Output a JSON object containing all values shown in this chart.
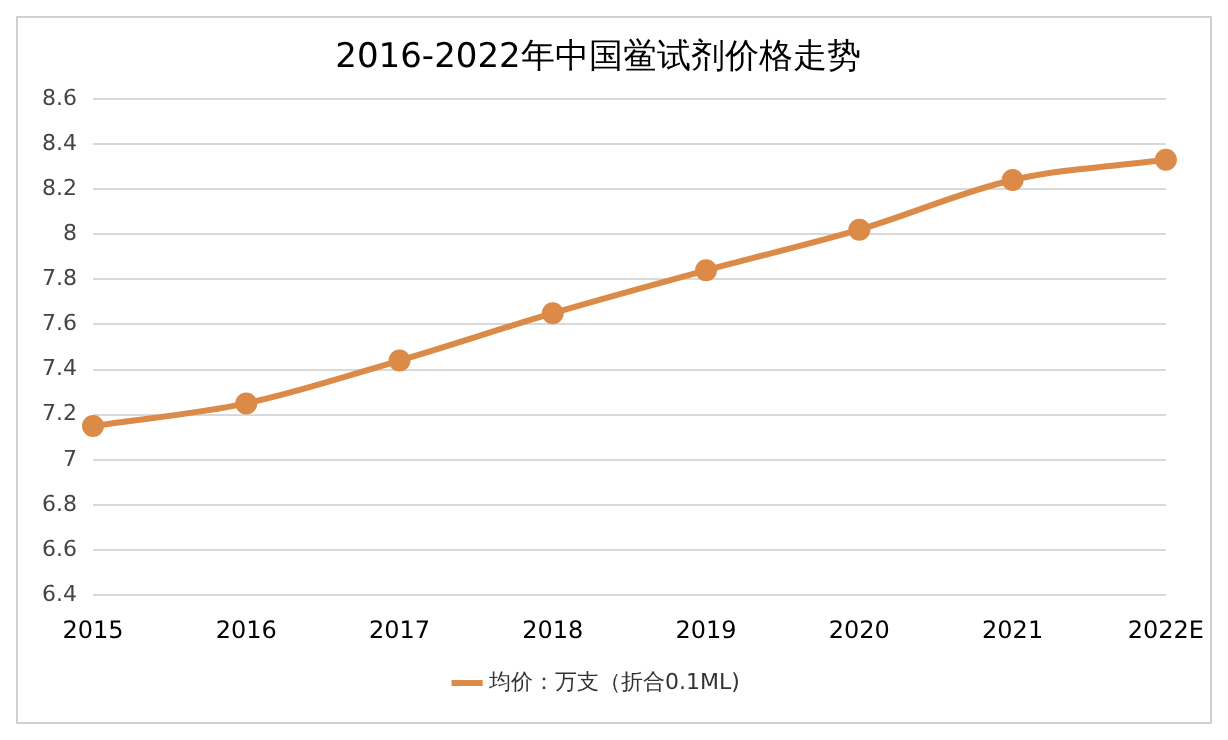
{
  "chart_data": {
    "type": "line",
    "title": "2016-2022年中国鲎试剂价格走势",
    "categories": [
      "2015",
      "2016",
      "2017",
      "2018",
      "2019",
      "2020",
      "2021",
      "2022E"
    ],
    "series": [
      {
        "name": "均价：万支（折合0.1ML)",
        "color": "#dc8a48",
        "values": [
          7.15,
          7.25,
          7.44,
          7.65,
          7.84,
          8.02,
          8.24,
          8.33
        ]
      }
    ],
    "ylim": [
      6.4,
      8.6
    ],
    "yticks": [
      6.4,
      6.6,
      6.8,
      7,
      7.2,
      7.4,
      7.6,
      7.8,
      8,
      8.2,
      8.4,
      8.6
    ],
    "grid": "y",
    "legend": "bottom",
    "marker": "circle",
    "line_style": "solid"
  }
}
